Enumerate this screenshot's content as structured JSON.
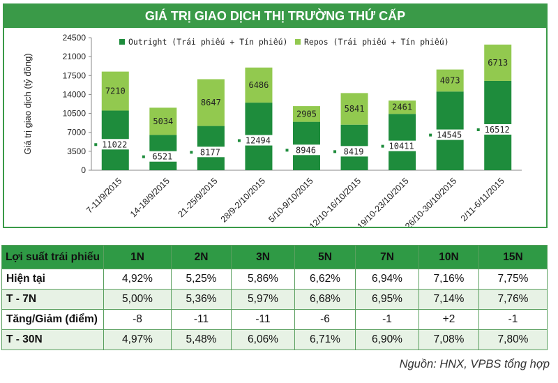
{
  "chart_data": {
    "type": "stacked-bar",
    "title": "GIÁ TRỊ GIAO DỊCH THỊ TRƯỜNG THỨ CẤP",
    "ylabel": "Giá trị giao dịch (tỷ đồng)",
    "ylim": [
      0,
      24500
    ],
    "yticks": [
      "0",
      "3500",
      "7000",
      "10500",
      "14000",
      "17500",
      "21000",
      "24500"
    ],
    "categories": [
      "7-11/9/2015",
      "14-18/9/2015",
      "21-25/9/2015",
      "28/9-2/10/2015",
      "5/10-9/10/2015",
      "12/10-16/10/2015",
      "19/10-23/10/2015",
      "26/10-30/10/2015",
      "2/11-6/11/2015"
    ],
    "series": [
      {
        "name": "Outright (Trái phiếu + Tín phiếu)",
        "color": "#1e8c3c",
        "values": [
          11022,
          6521,
          8177,
          12494,
          8946,
          8419,
          10411,
          14545,
          16512
        ]
      },
      {
        "name": "Repos (Trái phiếu + Tín phiếu)",
        "color": "#92c94f",
        "values": [
          7210,
          5034,
          8647,
          6486,
          2905,
          5841,
          2461,
          4073,
          6713
        ]
      }
    ]
  },
  "table": {
    "header": [
      "Lợi suất trái phiếu",
      "1N",
      "2N",
      "3N",
      "5N",
      "7N",
      "10N",
      "15N"
    ],
    "rows": [
      {
        "label": "Hiện tại",
        "values": [
          "4,92%",
          "5,25%",
          "5,86%",
          "6,62%",
          "6,94%",
          "7,16%",
          "7,75%"
        ]
      },
      {
        "label": "T - 7N",
        "values": [
          "5,00%",
          "5,36%",
          "5,97%",
          "6,68%",
          "6,95%",
          "7,14%",
          "7,76%"
        ]
      },
      {
        "label": "Tăng/Giảm (điểm)",
        "values": [
          "-8",
          "-11",
          "-11",
          "-6",
          "-1",
          "+2",
          "-1"
        ]
      },
      {
        "label": "T - 30N",
        "values": [
          "4,97%",
          "5,48%",
          "6,06%",
          "6,71%",
          "6,90%",
          "7,08%",
          "7,80%"
        ]
      }
    ]
  },
  "source": "Nguồn: HNX, VPBS tổng hợp"
}
